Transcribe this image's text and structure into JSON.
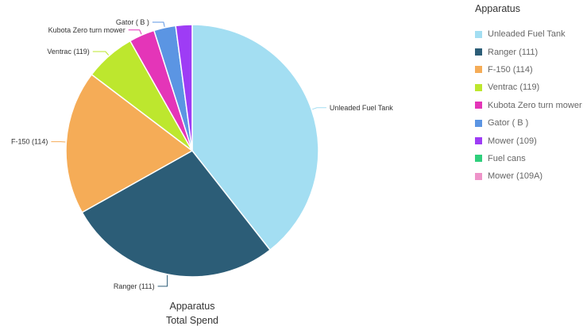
{
  "chart_data": {
    "type": "pie",
    "legend_title": "Apparatus",
    "legend_position": "right",
    "caption_line1": "Apparatus",
    "caption_line2": "Total Spend",
    "slices": [
      {
        "label": "Unleaded Fuel Tank",
        "value": 39.5,
        "color": "#a3def2"
      },
      {
        "label": "Ranger (111)",
        "value": 27.5,
        "color": "#2c5d77"
      },
      {
        "label": "F-150 (114)",
        "value": 18.5,
        "color": "#f5ac57"
      },
      {
        "label": "Ventrac (119)",
        "value": 6.5,
        "color": "#bde72e"
      },
      {
        "label": "Kubota Zero turn mower",
        "value": 3.3,
        "color": "#e435b8"
      },
      {
        "label": "Gator ( B )",
        "value": 2.8,
        "color": "#5b95e3"
      },
      {
        "label": "Mower (109)",
        "value": 2.1,
        "color": "#9e3cf5"
      },
      {
        "label": "Fuel cans",
        "value": 0,
        "color": "#2fcf7c"
      },
      {
        "label": "Mower (109A)",
        "value": 0,
        "color": "#ee93c9"
      }
    ]
  }
}
